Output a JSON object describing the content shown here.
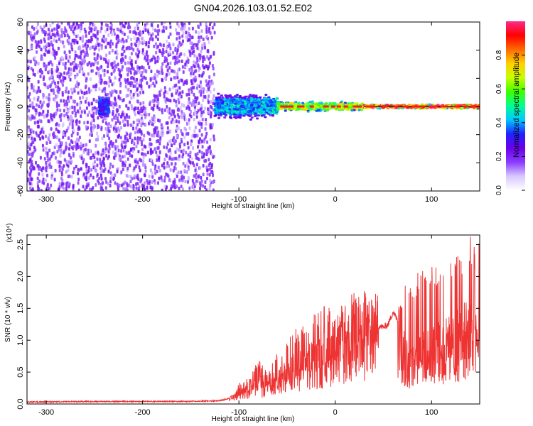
{
  "title": "GN04.2026.103.01.52.E02",
  "chart_data": [
    {
      "type": "heatmap",
      "xlabel": "Height of straight line (km)",
      "ylabel": "Frequency (Hz)",
      "xlim": [
        -320,
        150
      ],
      "ylim": [
        -60,
        60
      ],
      "xticks": [
        -300,
        -200,
        -100,
        0,
        100
      ],
      "yticks": [
        -60,
        -40,
        -20,
        0,
        20,
        40,
        60
      ],
      "colorbar": {
        "label": "Normalized spectral amplitude",
        "range": [
          0,
          1
        ],
        "ticks": [
          "0.0",
          "0.2",
          "0.4",
          "0.6",
          "0.8"
        ],
        "colors": [
          "#ffffff",
          "#d8c8ff",
          "#8a3cff",
          "#6a00e8",
          "#1f22ff",
          "#00c8ff",
          "#00ff90",
          "#40ff00",
          "#c8ff00",
          "#ffd000",
          "#ff6a00",
          "#ff0000",
          "#ff2a8a"
        ]
      },
      "regions": [
        {
          "x_range": [
            -320,
            -125
          ],
          "freq_range": [
            -60,
            60
          ],
          "amplitude": 0.15,
          "description": "broadband noise"
        },
        {
          "x_range": [
            -245,
            -235
          ],
          "freq_range": [
            -10,
            10
          ],
          "amplitude": 0.35
        },
        {
          "x_range": [
            -125,
            -60
          ],
          "freq_range": [
            -10,
            10
          ],
          "amplitude": 0.45
        },
        {
          "x_range": [
            -60,
            30
          ],
          "freq_range": [
            -4,
            4
          ],
          "amplitude": 0.7
        },
        {
          "x_range": [
            30,
            150
          ],
          "freq_range": [
            -2,
            2
          ],
          "amplitude": 0.95
        }
      ]
    },
    {
      "type": "line",
      "xlabel": "Height of straight line (km)",
      "ylabel": "SNR (10 * v/v)",
      "y_multiplier": "(x10⁴)",
      "xlim": [
        -320,
        150
      ],
      "ylim": [
        0,
        2.65
      ],
      "xticks": [
        -300,
        -200,
        -100,
        0,
        100
      ],
      "yticks": [
        "0.0",
        "0.5",
        "1.0",
        "1.5",
        "2.0",
        "2.5"
      ],
      "series": [
        {
          "color": "#ee3333",
          "x": [
            -320,
            -250,
            -200,
            -150,
            -120,
            -105,
            -100,
            -90,
            -80,
            -70,
            -60,
            -50,
            -40,
            -30,
            -20,
            -10,
            0,
            10,
            20,
            30,
            40,
            50,
            55,
            60,
            65,
            70,
            75,
            80,
            90,
            100,
            110,
            120,
            130,
            140,
            150
          ],
          "y": [
            0.02,
            0.03,
            0.03,
            0.03,
            0.04,
            0.1,
            0.2,
            0.25,
            0.3,
            0.35,
            0.45,
            0.5,
            0.6,
            0.65,
            0.75,
            0.85,
            0.9,
            1.0,
            1.1,
            1.15,
            1.25,
            1.2,
            1.25,
            1.45,
            1.3,
            0.95,
            0.75,
            0.7,
            0.8,
            0.9,
            0.95,
            1.0,
            1.1,
            1.2,
            1.25
          ],
          "peak_y": [
            0.03,
            0.06,
            0.06,
            0.06,
            0.06,
            0.15,
            0.35,
            0.4,
            0.7,
            0.5,
            0.8,
            1.0,
            1.2,
            1.3,
            1.45,
            1.55,
            1.5,
            1.6,
            1.95,
            1.8,
            1.6,
            1.3,
            1.4,
            1.5,
            1.6,
            1.85,
            2.05,
            2.0,
            2.15,
            2.3,
            2.15,
            2.25,
            2.5,
            2.65,
            2.6
          ]
        }
      ]
    }
  ]
}
